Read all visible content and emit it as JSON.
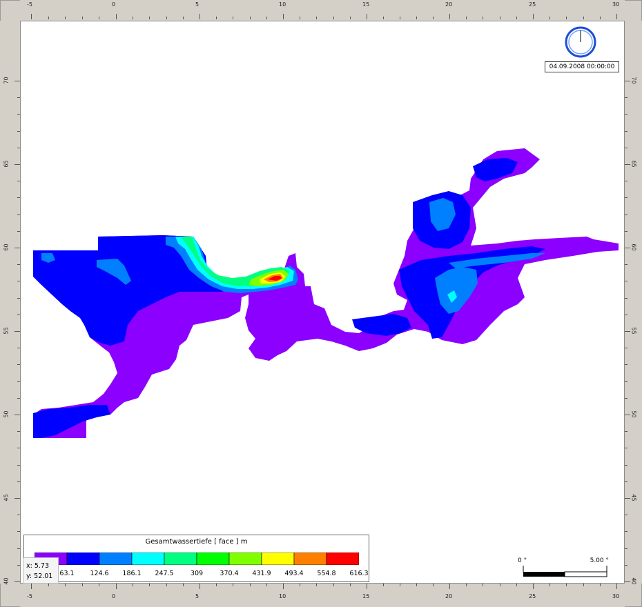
{
  "x_axis": {
    "ticks": [
      "-5",
      "0",
      "5",
      "10",
      "15",
      "20",
      "25",
      "30"
    ]
  },
  "y_axis": {
    "ticks": [
      "70",
      "65",
      "60",
      "55",
      "50",
      "45",
      "40"
    ],
    "ticks_right": [
      "70",
      "65",
      "60",
      "55",
      "50",
      "45",
      "40"
    ]
  },
  "timestamp": "04.09.2008 00:00:00",
  "legend": {
    "title": "Gesamtwassertiefe [ face ] m",
    "labels": [
      "63.1",
      "124.6",
      "186.1",
      "247.5",
      "309",
      "370.4",
      "431.9",
      "493.4",
      "554.8",
      "616.3"
    ],
    "colors": [
      "#8c00ff",
      "#0000ff",
      "#0080ff",
      "#00ffff",
      "#00ff80",
      "#00ff00",
      "#80ff00",
      "#ffff00",
      "#ff8000",
      "#ff0000"
    ]
  },
  "cursor": {
    "x": "x: 5.73",
    "y": "y: 52.01"
  },
  "scale": {
    "left": "0 °",
    "right": "5.00 °"
  }
}
